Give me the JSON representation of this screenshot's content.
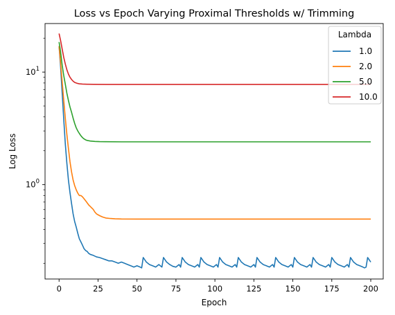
{
  "chart_data": {
    "type": "line",
    "title": "Loss vs Epoch Varying Proximal Thresholds w/ Trimming",
    "xlabel": "Epoch",
    "ylabel": "Log Loss",
    "x_scale": "linear",
    "y_scale": "log",
    "xlim": [
      -9,
      208
    ],
    "ylim": [
      0.145,
      27
    ],
    "x_ticks": [
      0,
      25,
      50,
      75,
      100,
      125,
      150,
      175,
      200
    ],
    "y_ticks": [
      {
        "value": 1,
        "label": "10^0"
      },
      {
        "value": 10,
        "label": "10^1"
      }
    ],
    "grid": false,
    "legend": {
      "title": "Lambda",
      "placement": "top-right"
    },
    "series": [
      {
        "name": "1.0",
        "color": "#1f77b4",
        "points": [
          [
            0,
            17
          ],
          [
            1,
            11
          ],
          [
            2,
            6.5
          ],
          [
            3,
            3.8
          ],
          [
            4,
            2.3
          ],
          [
            5,
            1.55
          ],
          [
            6,
            1.1
          ],
          [
            7,
            0.85
          ],
          [
            8,
            0.68
          ],
          [
            9,
            0.55
          ],
          [
            10,
            0.47
          ],
          [
            11,
            0.42
          ],
          [
            12,
            0.37
          ],
          [
            13,
            0.33
          ],
          [
            14,
            0.31
          ],
          [
            15,
            0.29
          ],
          [
            16,
            0.27
          ],
          [
            17,
            0.26
          ],
          [
            18,
            0.255
          ],
          [
            19,
            0.245
          ],
          [
            20,
            0.24
          ],
          [
            22,
            0.235
          ],
          [
            24,
            0.228
          ],
          [
            26,
            0.225
          ],
          [
            28,
            0.22
          ],
          [
            30,
            0.215
          ],
          [
            32,
            0.21
          ],
          [
            34,
            0.21
          ],
          [
            36,
            0.205
          ],
          [
            38,
            0.2
          ],
          [
            40,
            0.205
          ],
          [
            42,
            0.2
          ],
          [
            44,
            0.195
          ],
          [
            46,
            0.19
          ],
          [
            48,
            0.185
          ],
          [
            50,
            0.19
          ],
          [
            52,
            0.185
          ],
          [
            53,
            0.182
          ],
          [
            54,
            0.225
          ],
          [
            56,
            0.205
          ],
          [
            58,
            0.195
          ],
          [
            60,
            0.19
          ],
          [
            62,
            0.185
          ],
          [
            64,
            0.195
          ],
          [
            66,
            0.185
          ],
          [
            67,
            0.225
          ],
          [
            69,
            0.205
          ],
          [
            71,
            0.195
          ],
          [
            73,
            0.188
          ],
          [
            75,
            0.185
          ],
          [
            77,
            0.195
          ],
          [
            78,
            0.185
          ],
          [
            79,
            0.225
          ],
          [
            81,
            0.205
          ],
          [
            83,
            0.195
          ],
          [
            85,
            0.19
          ],
          [
            87,
            0.185
          ],
          [
            89,
            0.195
          ],
          [
            90,
            0.185
          ],
          [
            91,
            0.225
          ],
          [
            93,
            0.205
          ],
          [
            95,
            0.195
          ],
          [
            97,
            0.19
          ],
          [
            99,
            0.185
          ],
          [
            101,
            0.195
          ],
          [
            102,
            0.185
          ],
          [
            103,
            0.225
          ],
          [
            105,
            0.205
          ],
          [
            107,
            0.195
          ],
          [
            109,
            0.19
          ],
          [
            111,
            0.185
          ],
          [
            113,
            0.195
          ],
          [
            114,
            0.185
          ],
          [
            115,
            0.225
          ],
          [
            117,
            0.205
          ],
          [
            119,
            0.195
          ],
          [
            121,
            0.19
          ],
          [
            123,
            0.185
          ],
          [
            125,
            0.195
          ],
          [
            126,
            0.185
          ],
          [
            127,
            0.225
          ],
          [
            129,
            0.205
          ],
          [
            131,
            0.195
          ],
          [
            133,
            0.19
          ],
          [
            135,
            0.185
          ],
          [
            137,
            0.195
          ],
          [
            138,
            0.185
          ],
          [
            139,
            0.225
          ],
          [
            141,
            0.205
          ],
          [
            143,
            0.195
          ],
          [
            145,
            0.19
          ],
          [
            147,
            0.185
          ],
          [
            149,
            0.195
          ],
          [
            150,
            0.185
          ],
          [
            151,
            0.225
          ],
          [
            153,
            0.205
          ],
          [
            155,
            0.195
          ],
          [
            157,
            0.19
          ],
          [
            159,
            0.185
          ],
          [
            161,
            0.195
          ],
          [
            162,
            0.185
          ],
          [
            163,
            0.225
          ],
          [
            165,
            0.205
          ],
          [
            167,
            0.195
          ],
          [
            169,
            0.19
          ],
          [
            171,
            0.185
          ],
          [
            173,
            0.195
          ],
          [
            174,
            0.185
          ],
          [
            175,
            0.225
          ],
          [
            177,
            0.205
          ],
          [
            179,
            0.195
          ],
          [
            181,
            0.19
          ],
          [
            183,
            0.185
          ],
          [
            185,
            0.195
          ],
          [
            186,
            0.185
          ],
          [
            187,
            0.225
          ],
          [
            189,
            0.205
          ],
          [
            191,
            0.195
          ],
          [
            193,
            0.19
          ],
          [
            195,
            0.185
          ],
          [
            196,
            0.182
          ],
          [
            197,
            0.185
          ],
          [
            198,
            0.225
          ],
          [
            200,
            0.205
          ]
        ]
      },
      {
        "name": "2.0",
        "color": "#ff7f0e",
        "points": [
          [
            0,
            17
          ],
          [
            1,
            12
          ],
          [
            2,
            8.2
          ],
          [
            3,
            5.6
          ],
          [
            4,
            3.9
          ],
          [
            5,
            2.8
          ],
          [
            6,
            2.1
          ],
          [
            7,
            1.6
          ],
          [
            8,
            1.3
          ],
          [
            9,
            1.1
          ],
          [
            10,
            0.98
          ],
          [
            11,
            0.9
          ],
          [
            12,
            0.84
          ],
          [
            13,
            0.8
          ],
          [
            14,
            0.8
          ],
          [
            15,
            0.78
          ],
          [
            16,
            0.75
          ],
          [
            17,
            0.72
          ],
          [
            18,
            0.69
          ],
          [
            19,
            0.66
          ],
          [
            20,
            0.64
          ],
          [
            21,
            0.62
          ],
          [
            22,
            0.6
          ],
          [
            23,
            0.57
          ],
          [
            24,
            0.55
          ],
          [
            26,
            0.53
          ],
          [
            28,
            0.515
          ],
          [
            30,
            0.505
          ],
          [
            33,
            0.5
          ],
          [
            36,
            0.497
          ],
          [
            40,
            0.495
          ],
          [
            50,
            0.494
          ],
          [
            60,
            0.494
          ],
          [
            80,
            0.494
          ],
          [
            100,
            0.494
          ],
          [
            130,
            0.494
          ],
          [
            160,
            0.494
          ],
          [
            200,
            0.494
          ]
        ]
      },
      {
        "name": "5.0",
        "color": "#2ca02c",
        "points": [
          [
            0,
            18.5
          ],
          [
            1,
            15
          ],
          [
            2,
            11.5
          ],
          [
            3,
            9.3
          ],
          [
            4,
            7.8
          ],
          [
            5,
            6.5
          ],
          [
            6,
            5.6
          ],
          [
            7,
            4.9
          ],
          [
            8,
            4.4
          ],
          [
            9,
            3.9
          ],
          [
            10,
            3.5
          ],
          [
            11,
            3.2
          ],
          [
            12,
            3.0
          ],
          [
            13,
            2.85
          ],
          [
            14,
            2.72
          ],
          [
            15,
            2.62
          ],
          [
            16,
            2.55
          ],
          [
            17,
            2.5
          ],
          [
            18,
            2.47
          ],
          [
            20,
            2.44
          ],
          [
            23,
            2.42
          ],
          [
            26,
            2.41
          ],
          [
            30,
            2.405
          ],
          [
            40,
            2.4
          ],
          [
            60,
            2.4
          ],
          [
            100,
            2.4
          ],
          [
            150,
            2.4
          ],
          [
            200,
            2.4
          ]
        ]
      },
      {
        "name": "10.0",
        "color": "#d62728",
        "points": [
          [
            0,
            22
          ],
          [
            1,
            19
          ],
          [
            2,
            16
          ],
          [
            3,
            13.5
          ],
          [
            4,
            11.8
          ],
          [
            5,
            10.5
          ],
          [
            6,
            9.6
          ],
          [
            7,
            9.0
          ],
          [
            8,
            8.6
          ],
          [
            9,
            8.3
          ],
          [
            10,
            8.1
          ],
          [
            11,
            8.0
          ],
          [
            12,
            7.92
          ],
          [
            13,
            7.87
          ],
          [
            15,
            7.82
          ],
          [
            18,
            7.8
          ],
          [
            22,
            7.78
          ],
          [
            30,
            7.77
          ],
          [
            50,
            7.77
          ],
          [
            100,
            7.77
          ],
          [
            150,
            7.77
          ],
          [
            200,
            7.77
          ]
        ]
      }
    ]
  }
}
